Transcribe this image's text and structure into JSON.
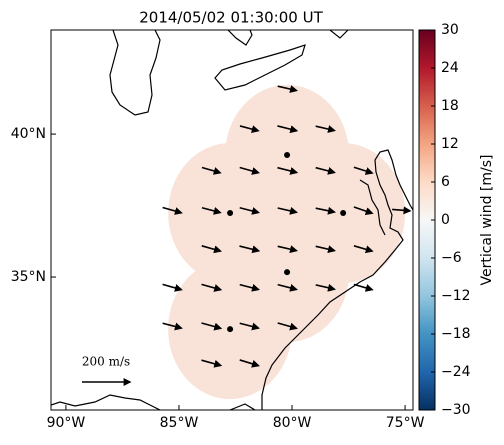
{
  "chart_data": {
    "type": "quiver_map",
    "title": "2014/05/02 01:30:00 UT",
    "xlim": [
      -90.66,
      -74.65
    ],
    "ylim": [
      30.35,
      43.64
    ],
    "xticks": [
      {
        "value": -90,
        "label": "90°W"
      },
      {
        "value": -85,
        "label": "85°W"
      },
      {
        "value": -80,
        "label": "80°W"
      },
      {
        "value": -75,
        "label": "75°W"
      }
    ],
    "yticks": [
      {
        "value": 35,
        "label": "35°N"
      },
      {
        "value": 40,
        "label": "40°N"
      }
    ],
    "field": {
      "value": 3,
      "color": "#f9e3d8"
    },
    "stations": {
      "lon": [
        -80.22,
        -82.74,
        -77.74,
        -80.22,
        -82.74
      ],
      "lat": [
        39.27,
        37.24,
        37.24,
        35.17,
        33.18
      ]
    },
    "vectors": {
      "lon": [
        -80.22,
        -81.9,
        -80.22,
        -78.54,
        -83.58,
        -81.9,
        -80.22,
        -78.54,
        -76.86,
        -85.31,
        -83.58,
        -81.9,
        -80.22,
        -78.54,
        -76.86,
        -75.18,
        -83.58,
        -81.9,
        -80.22,
        -78.54,
        -76.86,
        -85.31,
        -83.58,
        -81.9,
        -80.22,
        -78.54,
        -76.86,
        -85.31,
        -83.58,
        -81.9,
        -80.22,
        -83.58,
        -81.9
      ],
      "lat": [
        41.6,
        40.2,
        40.2,
        40.2,
        38.74,
        38.74,
        38.74,
        38.74,
        38.74,
        37.34,
        37.34,
        37.34,
        37.34,
        37.34,
        37.34,
        37.34,
        36.0,
        36.0,
        36.0,
        36.0,
        36.0,
        34.65,
        34.65,
        34.65,
        34.65,
        34.65,
        34.65,
        33.3,
        33.3,
        33.3,
        33.3,
        32.0,
        32.0
      ],
      "u": [
        78,
        76,
        80,
        78,
        76,
        78,
        80,
        78,
        76,
        78,
        76,
        78,
        78,
        78,
        76,
        74,
        78,
        80,
        78,
        78,
        76,
        78,
        80,
        78,
        78,
        78,
        76,
        78,
        80,
        78,
        78,
        80,
        78
      ],
      "v": [
        -18,
        -20,
        -20,
        -18,
        -22,
        -22,
        -20,
        -20,
        -24,
        -22,
        -20,
        -20,
        -18,
        -16,
        -26,
        -6,
        -22,
        -20,
        -18,
        -18,
        -22,
        -22,
        -22,
        -20,
        -20,
        -18,
        -22,
        -20,
        -22,
        -20,
        -22,
        -22,
        -24
      ]
    },
    "key": {
      "value": 200,
      "label": "200 m/s"
    },
    "colorbar": {
      "label": "Vertical wind [m/s]",
      "lim": [
        -30,
        30
      ],
      "colors": [
        "#053061",
        "#2166ac",
        "#4393c3",
        "#92c5de",
        "#d1e5f0",
        "#f7f7f7",
        "#fddbc7",
        "#f4a582",
        "#d6604d",
        "#b2182b",
        "#67001f"
      ],
      "ticks": [
        {
          "value": -30,
          "label": "−30"
        },
        {
          "value": -24,
          "label": "−24"
        },
        {
          "value": -18,
          "label": "−18"
        },
        {
          "value": -12,
          "label": "−12"
        },
        {
          "value": -6,
          "label": "−6"
        },
        0,
        6,
        12,
        18,
        24,
        30
      ]
    }
  }
}
